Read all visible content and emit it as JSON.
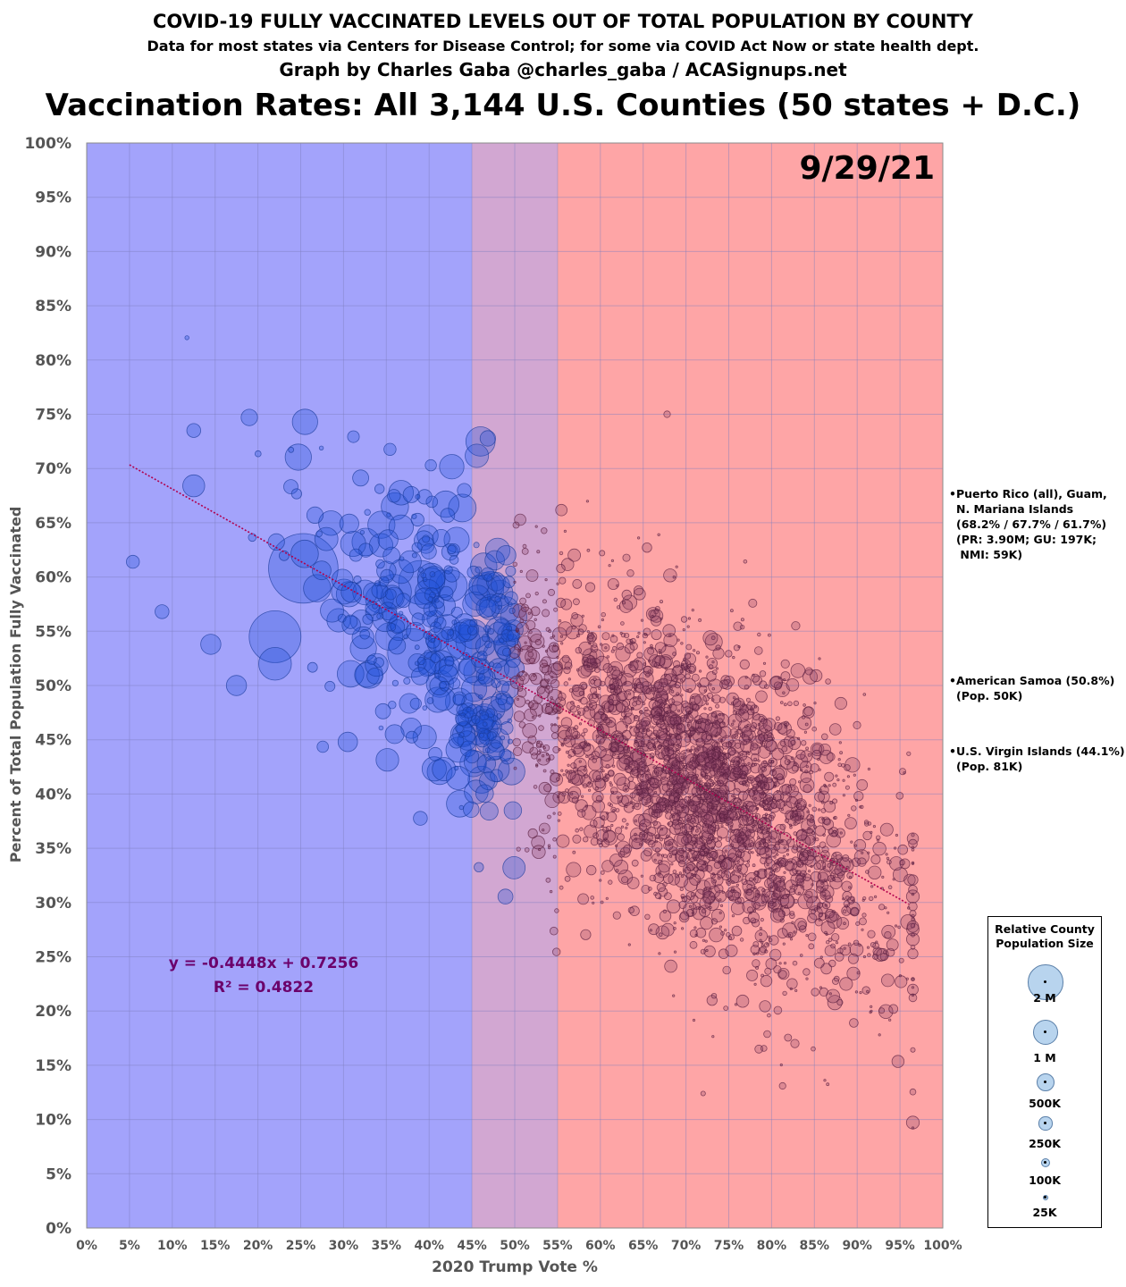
{
  "header": {
    "title": "COVID-19 FULLY VACCINATED LEVELS OUT OF TOTAL POPULATION BY COUNTY",
    "subtitle": "Data for most states via Centers for Disease Control; for some via COVID Act Now or state health dept.",
    "credit": "Graph by Charles Gaba @charles_gaba / ACASignups.net",
    "headline": "Vaccination Rates: All 3,144 U.S. Counties (50 states + D.C.)"
  },
  "colors": {
    "blue_zone": "#a3a3fb",
    "purple_zone": "#d2a7d2",
    "red_zone": "#fea5a6",
    "blue_bubble": "#1f4fd6",
    "red_bubble": "#8a3f66",
    "trendline": "#b0004d",
    "equation_text": "#6b006b",
    "legend_bubble": "#b8d4ee"
  },
  "chart_data": {
    "type": "scatter",
    "title": "Vaccination Rates: All 3,144 U.S. Counties (50 states + D.C.)",
    "date_label": "9/29/21",
    "xlabel": "2020 Trump Vote %",
    "ylabel": "Percent of Total Population Fully Vaccinated",
    "xlim": [
      0,
      100
    ],
    "ylim": [
      0,
      100
    ],
    "x_ticks": [
      "0%",
      "5%",
      "10%",
      "15%",
      "20%",
      "25%",
      "30%",
      "35%",
      "40%",
      "45%",
      "50%",
      "55%",
      "60%",
      "65%",
      "70%",
      "75%",
      "80%",
      "85%",
      "90%",
      "95%",
      "100%"
    ],
    "y_ticks": [
      "0%",
      "5%",
      "10%",
      "15%",
      "20%",
      "25%",
      "30%",
      "35%",
      "40%",
      "45%",
      "50%",
      "55%",
      "60%",
      "65%",
      "70%",
      "75%",
      "80%",
      "85%",
      "90%",
      "95%",
      "100%"
    ],
    "grid": true,
    "shaded_regions": [
      {
        "from": 0,
        "to": 45,
        "color": "#a3a3fb"
      },
      {
        "from": 45,
        "to": 55,
        "color": "#d2a7d2"
      },
      {
        "from": 55,
        "to": 100,
        "color": "#fea5a6"
      }
    ],
    "trendline": {
      "slope": -0.4448,
      "intercept": 0.7256,
      "x_range": [
        5,
        96
      ],
      "equation": "y = -0.4448x + 0.7256",
      "r_squared": "R² = 0.4822"
    },
    "annotated_points": [
      {
        "x": 25.3,
        "y": 60.8,
        "pop_k": 4500
      },
      {
        "x": 22.0,
        "y": 54.5,
        "pop_k": 2500
      },
      {
        "x": 46.0,
        "y": 72.5,
        "pop_k": 800
      },
      {
        "x": 25.5,
        "y": 74.3,
        "pop_k": 600
      },
      {
        "x": 38.0,
        "y": 53.0,
        "pop_k": 2200
      },
      {
        "x": 39.0,
        "y": 59.5,
        "pop_k": 1800
      },
      {
        "x": 43.5,
        "y": 48.5,
        "pop_k": 700
      },
      {
        "x": 44.0,
        "y": 54.0,
        "pop_k": 1100
      },
      {
        "x": 22.0,
        "y": 52.0,
        "pop_k": 1000
      },
      {
        "x": 14.5,
        "y": 53.8,
        "pop_k": 380
      },
      {
        "x": 17.5,
        "y": 50.0,
        "pop_k": 380
      },
      {
        "x": 12.5,
        "y": 68.4,
        "pop_k": 450
      },
      {
        "x": 19.0,
        "y": 74.7,
        "pop_k": 250
      },
      {
        "x": 12.5,
        "y": 73.5,
        "pop_k": 180
      },
      {
        "x": 5.4,
        "y": 61.4,
        "pop_k": 160
      },
      {
        "x": 8.8,
        "y": 56.8,
        "pop_k": 180
      },
      {
        "x": 30.5,
        "y": 44.8,
        "pop_k": 350
      },
      {
        "x": 33.0,
        "y": 51.0,
        "pop_k": 700
      },
      {
        "x": 49.0,
        "y": 62.0,
        "pop_k": 350
      },
      {
        "x": 36.0,
        "y": 66.5,
        "pop_k": 700
      },
      {
        "x": 28.0,
        "y": 63.5,
        "pop_k": 500
      },
      {
        "x": 40.0,
        "y": 52.0,
        "pop_k": 500
      },
      {
        "x": 67.8,
        "y": 75.0,
        "pop_k": 40
      },
      {
        "x": 72.0,
        "y": 12.4,
        "pop_k": 20
      },
      {
        "x": 96.0,
        "y": 29.5,
        "pop_k": 5
      }
    ],
    "y_right_notes": [
      {
        "label": "Puerto Rico (all), Guam, N. Mariana Islands",
        "values": "68.2% / 67.7% / 61.7%"
      },
      {
        "label": "American Samoa",
        "values": "50.8%"
      },
      {
        "label": "U.S. Virgin Islands",
        "values": "44.1%"
      }
    ]
  },
  "notes": {
    "pr": "Puerto Rico (all), Guam,\nN. Mariana Islands\n(68.2% / 67.7% / 61.7%)\n(PR: 3.90M; GU: 197K;\n NMI: 59K)",
    "as": "American Samoa (50.8%)\n(Pop. 50K)",
    "vi": "U.S. Virgin Islands (44.1%)\n(Pop. 81K)",
    "bullet": "•"
  },
  "legend": {
    "title": "Relative County\nPopulation Size",
    "items": [
      {
        "label": "2 M",
        "pop_k": 2000
      },
      {
        "label": "1 M",
        "pop_k": 1000
      },
      {
        "label": "500K",
        "pop_k": 500
      },
      {
        "label": "250K",
        "pop_k": 250
      },
      {
        "label": "100K",
        "pop_k": 100
      },
      {
        "label": "25K",
        "pop_k": 25
      }
    ]
  }
}
